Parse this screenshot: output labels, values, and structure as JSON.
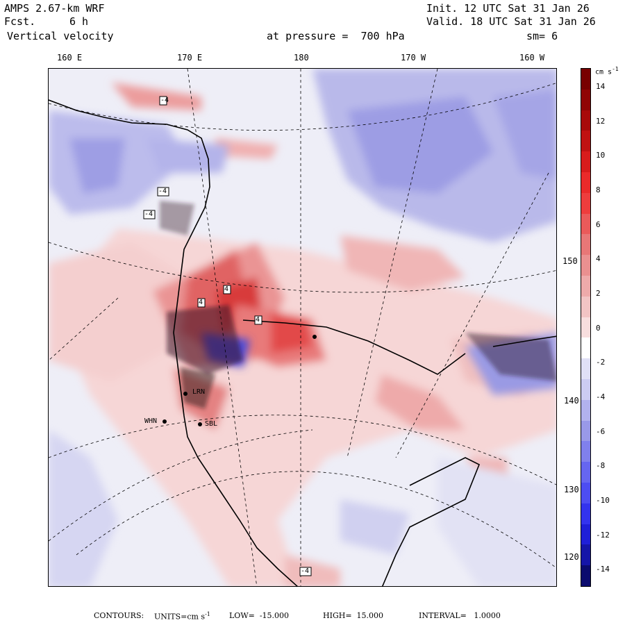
{
  "header": {
    "model": "AMPS 2.67-km WRF",
    "fcst_label": "Fcst.",
    "fcst_value": "6 h",
    "field": "Vertical velocity",
    "init": "Init. 12 UTC Sat 31 Jan 26",
    "valid": "Valid. 18 UTC Sat 31 Jan 26",
    "level": "at pressure =  700 hPa",
    "smoothing": "sm= 6"
  },
  "longitude_labels": [
    "160 E",
    "170 E",
    "180",
    "170 W",
    "160 W"
  ],
  "latitude_labels": [
    "150 W",
    "140 W",
    "130 W",
    "120 W"
  ],
  "stations": [
    "LRN",
    "WHN",
    "SBL"
  ],
  "colorbar": {
    "units_label": "cm s",
    "units_exp": "-1",
    "ticks": [
      "14",
      "12",
      "10",
      "8",
      "6",
      "4",
      "2",
      "0",
      "-2",
      "-4",
      "-6",
      "-8",
      "-10",
      "-12",
      "-14"
    ],
    "range": [
      -15,
      15
    ],
    "colors": [
      "#0b0b6e",
      "#1515a8",
      "#1f1fd8",
      "#3333ee",
      "#4d4df2",
      "#6666f0",
      "#8080ec",
      "#9999e8",
      "#b2b2ee",
      "#ccccf2",
      "#e0e0f6",
      "#ffffff",
      "#f8dede",
      "#f2c4c4",
      "#eeaaaa",
      "#ea9090",
      "#e87777",
      "#ea5a5a",
      "#ee3d3d",
      "#ea2a2a",
      "#d81c1c",
      "#c01212",
      "#a80a0a",
      "#900404",
      "#780000"
    ]
  },
  "footer": {
    "contours": "CONTOURS:",
    "units_label": "UNITS=cm s",
    "units_exp": "-1",
    "low": "LOW=  -15.000",
    "high": "HIGH=  15.000",
    "interval": "INTERVAL=   1.0000"
  },
  "contour_labels": [
    "-4",
    "-4",
    "-4",
    "4",
    "4",
    "4",
    "-4"
  ]
}
